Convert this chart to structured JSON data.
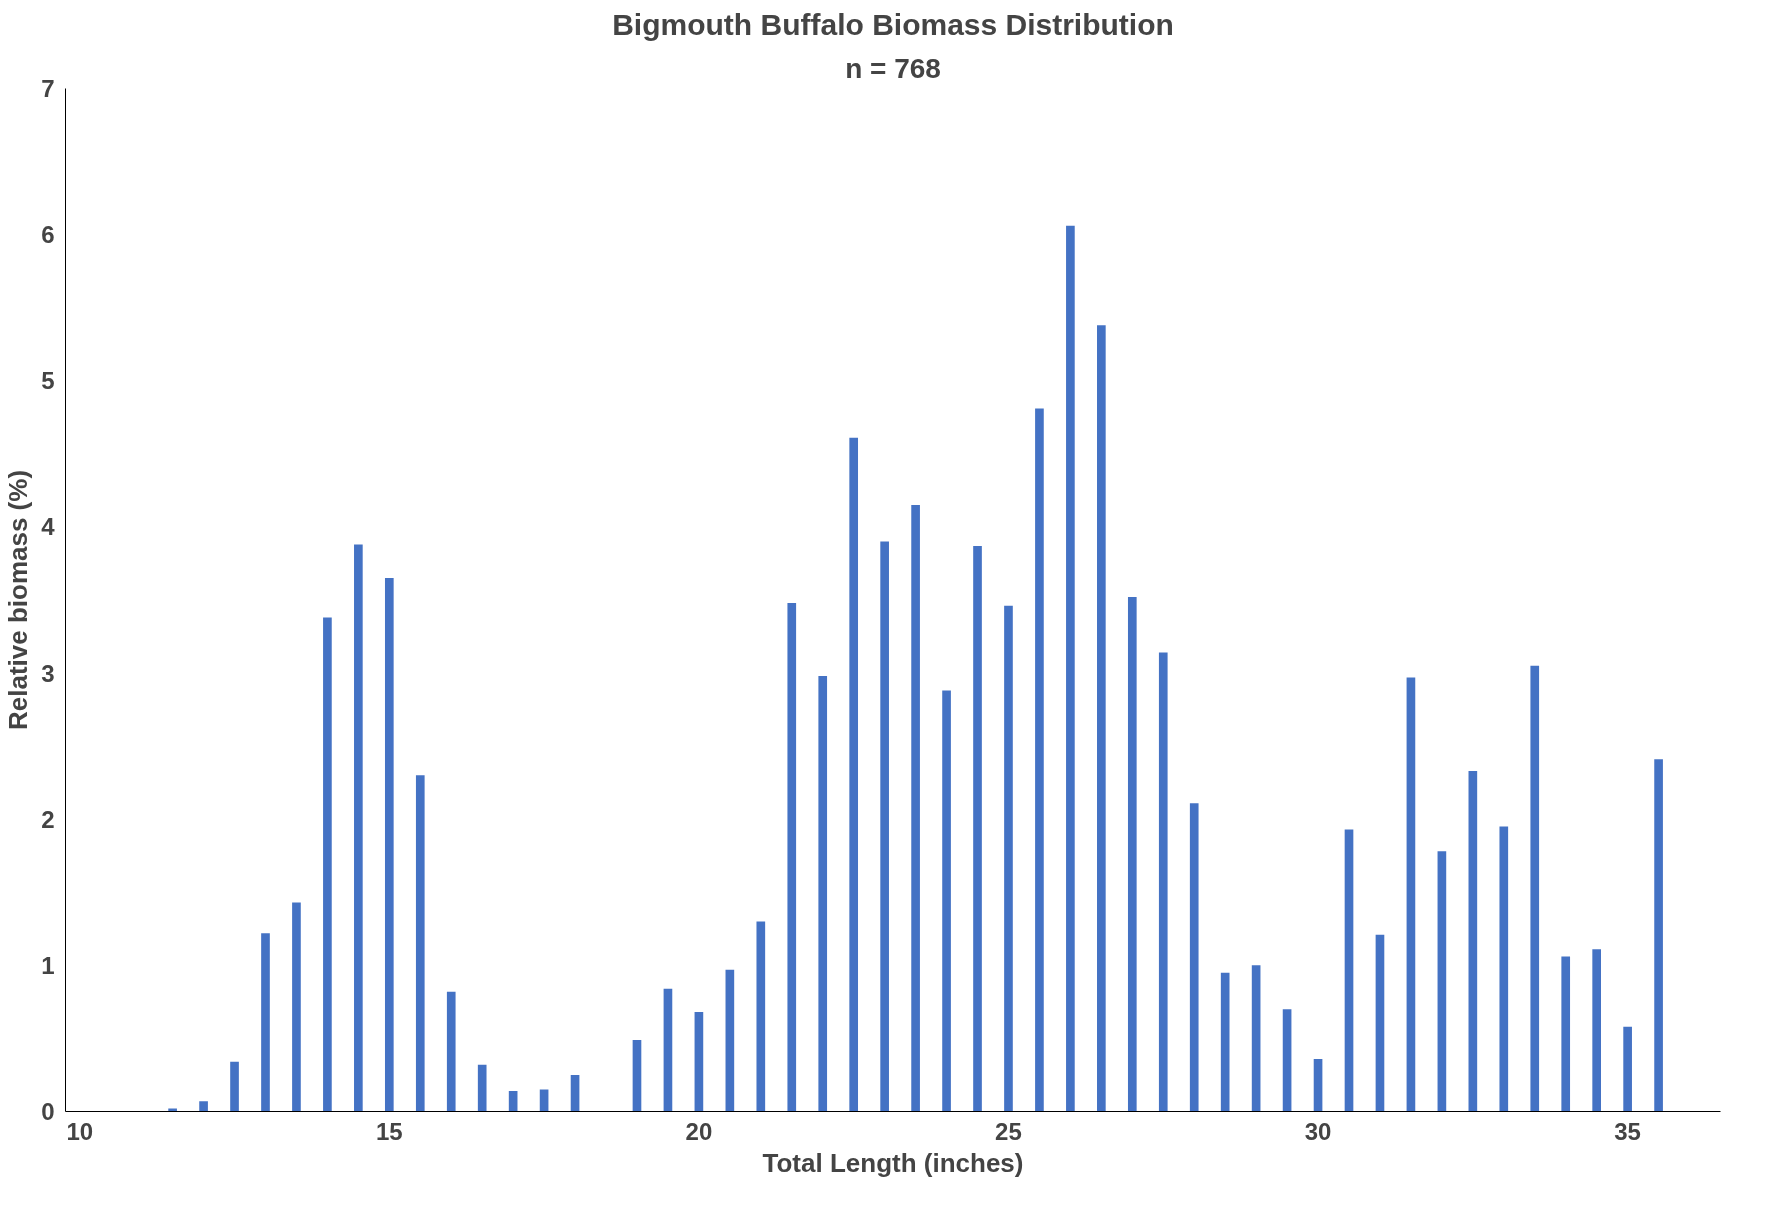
{
  "chart_data": {
    "type": "bar",
    "title": "Bigmouth Buffalo Biomass Distribution",
    "subtitle": "n = 768",
    "xlabel": "Total Length (inches)",
    "ylabel": "Relative biomass (%)",
    "x": [
      11.5,
      12,
      12.5,
      13,
      13.5,
      14,
      14.5,
      15,
      15.5,
      16,
      16.5,
      17,
      17.5,
      18,
      18.5,
      19,
      19.5,
      20,
      20.5,
      21,
      21.5,
      22,
      22.5,
      23,
      23.5,
      24,
      24.5,
      25,
      25.5,
      26,
      26.5,
      27,
      27.5,
      28,
      28.5,
      29,
      29.5,
      30,
      30.5,
      31,
      31.5,
      32,
      32.5,
      33,
      33.5,
      34,
      34.5,
      35,
      35.5
    ],
    "values": [
      0.02,
      0.07,
      0.34,
      1.22,
      1.43,
      3.38,
      3.88,
      3.65,
      2.3,
      0.82,
      0.32,
      0.14,
      0.15,
      0.25,
      null,
      0.49,
      0.84,
      0.68,
      0.97,
      1.3,
      3.48,
      2.98,
      4.61,
      3.9,
      4.15,
      2.88,
      3.87,
      3.46,
      4.81,
      6.06,
      5.38,
      3.52,
      3.14,
      2.11,
      0.95,
      1.0,
      0.7,
      0.36,
      1.93,
      1.21,
      2.97,
      1.78,
      2.33,
      1.95,
      3.05,
      1.06,
      1.11,
      0.58,
      2.41
    ],
    "color": "#4472c4",
    "xlim": [
      9.77,
      36.5
    ],
    "xticks": [
      10,
      15,
      20,
      25,
      30,
      35
    ],
    "ylim": [
      0,
      7
    ],
    "yticks": [
      0,
      1,
      2,
      3,
      4,
      5,
      6,
      7
    ],
    "grid": false
  }
}
